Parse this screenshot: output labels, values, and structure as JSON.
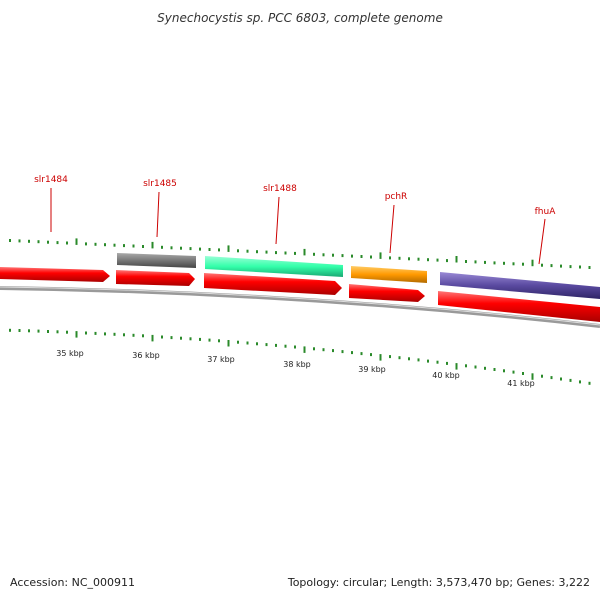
{
  "title": "Synechocystis sp. PCC 6803, complete genome",
  "footer": {
    "accession": "Accession: NC_000911",
    "summary": "Topology: circular; Length: 3,573,470 bp; Genes: 3,222"
  },
  "colors": {
    "forward_cds": "#ff0000",
    "label_red": "#cc0000",
    "tick_green": "#2a8a2a",
    "backbone": "#9a9a9a",
    "gray_feature": "#777777",
    "teal_feature": "#33ffaa",
    "orange_feature": "#ff9900",
    "purple_feature": "#5a4aa0"
  },
  "gene_labels": [
    {
      "name": "slr1484"
    },
    {
      "name": "slr1485"
    },
    {
      "name": "slr1488"
    },
    {
      "name": "pchR"
    },
    {
      "name": "fhuA"
    }
  ],
  "kbp_labels": [
    "35 kbp",
    "36 kbp",
    "37 kbp",
    "38 kbp",
    "39 kbp",
    "40 kbp",
    "41 kbp"
  ]
}
